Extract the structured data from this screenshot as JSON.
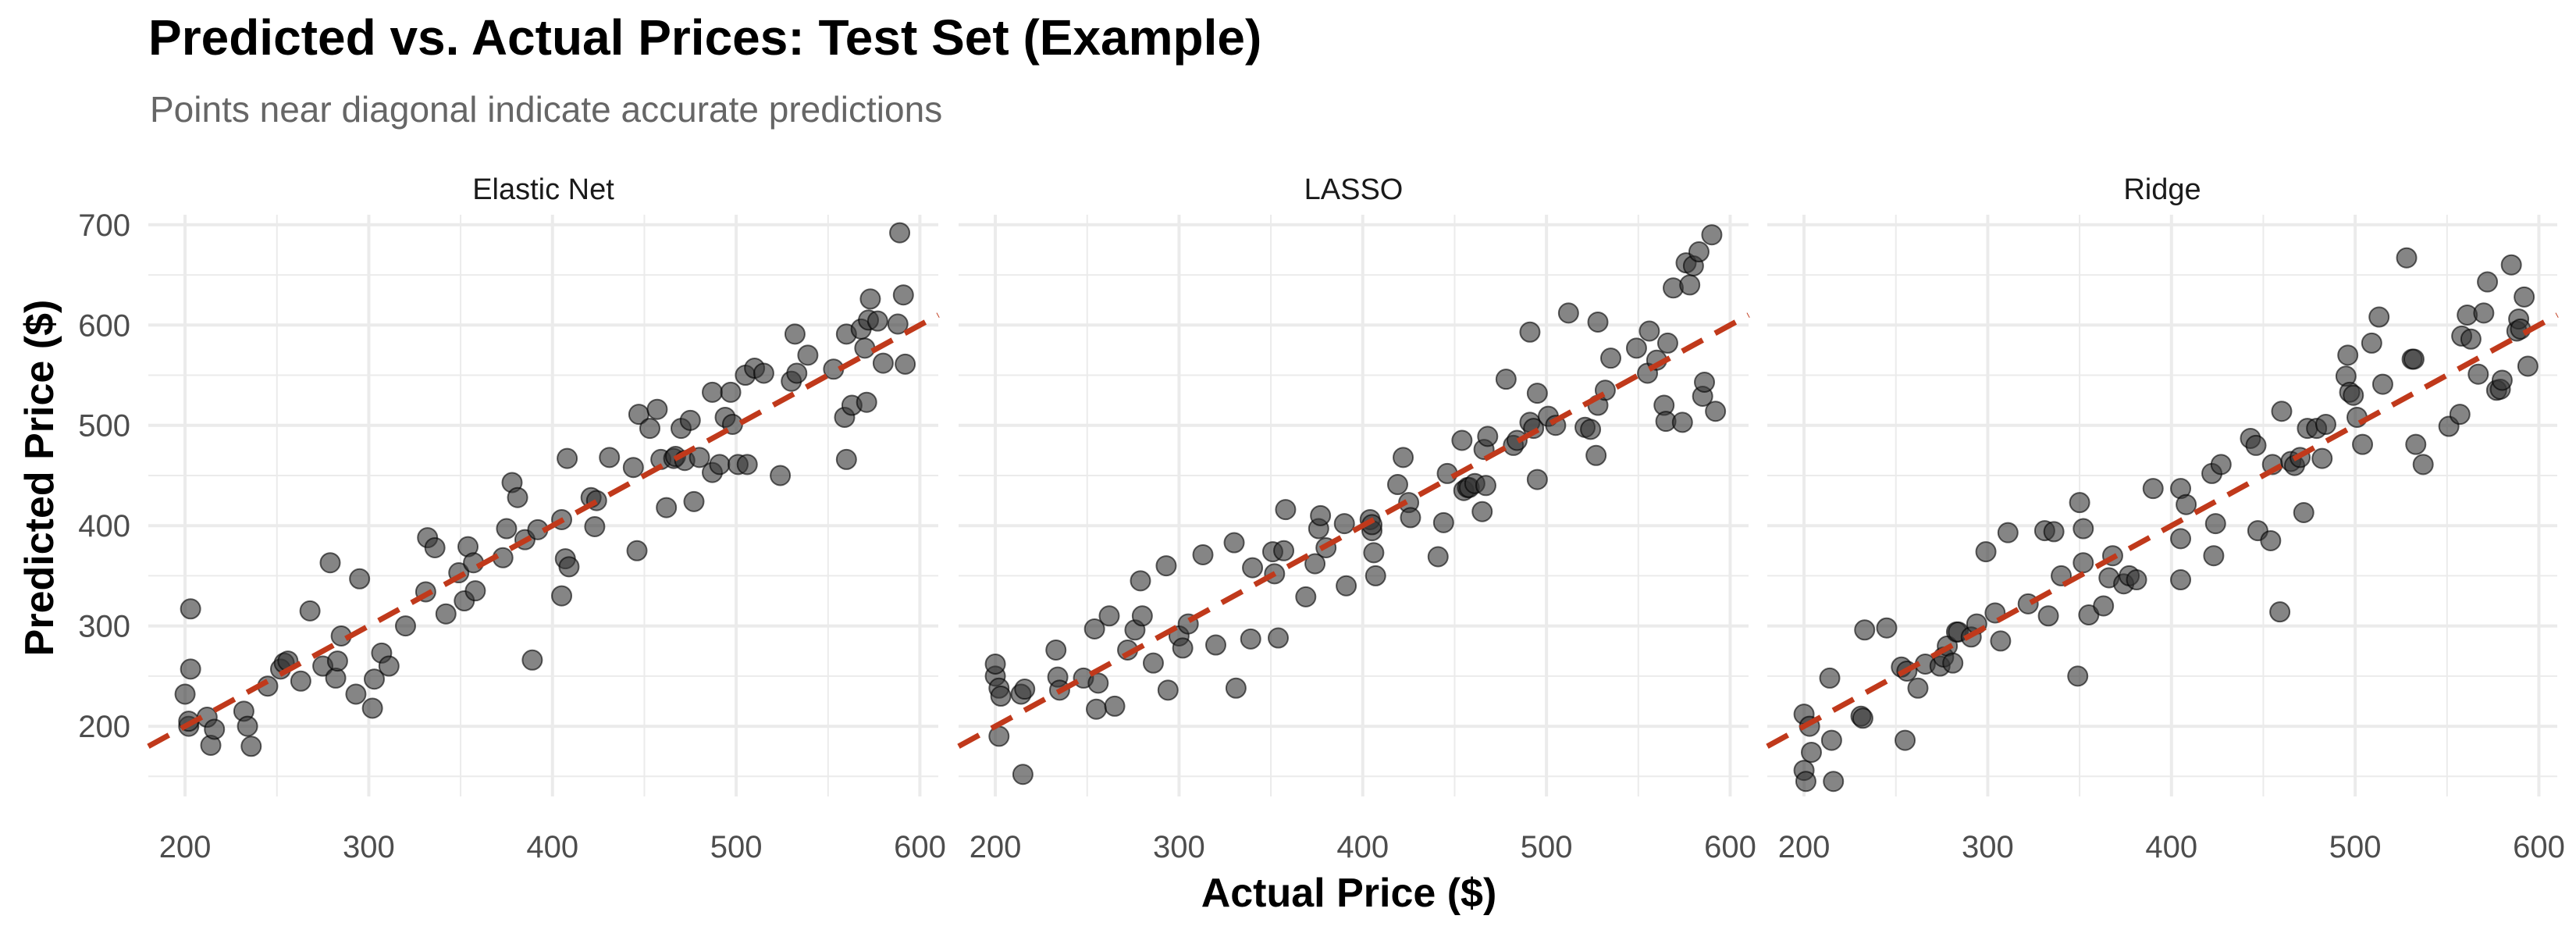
{
  "chart_data": {
    "type": "scatter",
    "title": "Predicted vs. Actual Prices: Test Set (Example)",
    "subtitle": "Points near diagonal indicate accurate predictions",
    "xlabel": "Actual Price ($)",
    "ylabel": "Predicted Price ($)",
    "xlim": [
      180,
      610
    ],
    "ylim": [
      130,
      710
    ],
    "x_ticks": [
      200,
      300,
      400,
      500,
      600
    ],
    "y_ticks": [
      200,
      300,
      400,
      500,
      600,
      700
    ],
    "grid": true,
    "reference_line": {
      "slope": 1,
      "intercept": 0,
      "color": "#C0391B",
      "style": "dashed"
    },
    "point_color": "#333333",
    "facets": [
      {
        "name": "Elastic Net",
        "points": [
          [
            200,
            232
          ],
          [
            202,
            200
          ],
          [
            202,
            205
          ],
          [
            203,
            257
          ],
          [
            203,
            317
          ],
          [
            212,
            209
          ],
          [
            214,
            181
          ],
          [
            216,
            197
          ],
          [
            232,
            215
          ],
          [
            234,
            200
          ],
          [
            236,
            180
          ],
          [
            245,
            240
          ],
          [
            252,
            257
          ],
          [
            254,
            263
          ],
          [
            256,
            265
          ],
          [
            263,
            245
          ],
          [
            268,
            315
          ],
          [
            275,
            260
          ],
          [
            279,
            363
          ],
          [
            282,
            248
          ],
          [
            283,
            265
          ],
          [
            285,
            290
          ],
          [
            293,
            232
          ],
          [
            295,
            347
          ],
          [
            302,
            218
          ],
          [
            303,
            247
          ],
          [
            307,
            273
          ],
          [
            311,
            260
          ],
          [
            320,
            300
          ],
          [
            331,
            334
          ],
          [
            332,
            388
          ],
          [
            336,
            378
          ],
          [
            342,
            312
          ],
          [
            349,
            353
          ],
          [
            352,
            325
          ],
          [
            354,
            379
          ],
          [
            357,
            363
          ],
          [
            358,
            335
          ],
          [
            373,
            368
          ],
          [
            375,
            397
          ],
          [
            378,
            443
          ],
          [
            381,
            428
          ],
          [
            385,
            386
          ],
          [
            389,
            266
          ],
          [
            392,
            396
          ],
          [
            405,
            330
          ],
          [
            405,
            406
          ],
          [
            407,
            367
          ],
          [
            408,
            467
          ],
          [
            409,
            359
          ],
          [
            421,
            428
          ],
          [
            423,
            399
          ],
          [
            424,
            425
          ],
          [
            431,
            468
          ],
          [
            444,
            458
          ],
          [
            446,
            375
          ],
          [
            447,
            511
          ],
          [
            453,
            497
          ],
          [
            457,
            516
          ],
          [
            459,
            466
          ],
          [
            462,
            418
          ],
          [
            466,
            467
          ],
          [
            467,
            469
          ],
          [
            470,
            497
          ],
          [
            472,
            465
          ],
          [
            475,
            505
          ],
          [
            477,
            424
          ],
          [
            480,
            468
          ],
          [
            487,
            533
          ],
          [
            487,
            453
          ],
          [
            491,
            461
          ],
          [
            494,
            508
          ],
          [
            497,
            533
          ],
          [
            498,
            501
          ],
          [
            501,
            461
          ],
          [
            505,
            550
          ],
          [
            506,
            461
          ],
          [
            510,
            557
          ],
          [
            515,
            552
          ],
          [
            524,
            450
          ],
          [
            530,
            544
          ],
          [
            532,
            591
          ],
          [
            533,
            552
          ],
          [
            539,
            570
          ],
          [
            553,
            556
          ],
          [
            559,
            508
          ],
          [
            560,
            466
          ],
          [
            560,
            591
          ],
          [
            563,
            520
          ],
          [
            568,
            596
          ],
          [
            570,
            577
          ],
          [
            571,
            523
          ],
          [
            572,
            605
          ],
          [
            573,
            626
          ],
          [
            577,
            604
          ],
          [
            580,
            562
          ],
          [
            588,
            601
          ],
          [
            589,
            692
          ],
          [
            591,
            630
          ],
          [
            592,
            561
          ]
        ]
      },
      {
        "name": "LASSO",
        "points": [
          [
            200,
            250
          ],
          [
            200,
            262
          ],
          [
            202,
            190
          ],
          [
            202,
            238
          ],
          [
            203,
            230
          ],
          [
            214,
            232
          ],
          [
            215,
            152
          ],
          [
            216,
            237
          ],
          [
            233,
            276
          ],
          [
            234,
            249
          ],
          [
            235,
            236
          ],
          [
            248,
            248
          ],
          [
            254,
            297
          ],
          [
            255,
            217
          ],
          [
            256,
            243
          ],
          [
            262,
            310
          ],
          [
            265,
            220
          ],
          [
            272,
            276
          ],
          [
            276,
            296
          ],
          [
            279,
            345
          ],
          [
            280,
            310
          ],
          [
            286,
            263
          ],
          [
            293,
            360
          ],
          [
            294,
            236
          ],
          [
            300,
            290
          ],
          [
            302,
            278
          ],
          [
            305,
            302
          ],
          [
            313,
            371
          ],
          [
            320,
            281
          ],
          [
            330,
            383
          ],
          [
            331,
            238
          ],
          [
            339,
            287
          ],
          [
            340,
            358
          ],
          [
            351,
            374
          ],
          [
            352,
            352
          ],
          [
            354,
            288
          ],
          [
            357,
            375
          ],
          [
            358,
            416
          ],
          [
            369,
            329
          ],
          [
            374,
            362
          ],
          [
            376,
            397
          ],
          [
            377,
            410
          ],
          [
            380,
            378
          ],
          [
            390,
            402
          ],
          [
            391,
            340
          ],
          [
            404,
            406
          ],
          [
            405,
            395
          ],
          [
            405,
            401
          ],
          [
            406,
            373
          ],
          [
            407,
            350
          ],
          [
            419,
            441
          ],
          [
            422,
            468
          ],
          [
            425,
            423
          ],
          [
            426,
            408
          ],
          [
            441,
            369
          ],
          [
            444,
            403
          ],
          [
            446,
            452
          ],
          [
            454,
            485
          ],
          [
            455,
            435
          ],
          [
            457,
            438
          ],
          [
            458,
            438
          ],
          [
            461,
            442
          ],
          [
            465,
            414
          ],
          [
            466,
            476
          ],
          [
            467,
            440
          ],
          [
            468,
            489
          ],
          [
            478,
            546
          ],
          [
            482,
            480
          ],
          [
            484,
            485
          ],
          [
            491,
            503
          ],
          [
            491,
            593
          ],
          [
            493,
            497
          ],
          [
            495,
            532
          ],
          [
            495,
            446
          ],
          [
            501,
            509
          ],
          [
            505,
            500
          ],
          [
            512,
            612
          ],
          [
            521,
            498
          ],
          [
            524,
            496
          ],
          [
            527,
            470
          ],
          [
            528,
            520
          ],
          [
            528,
            603
          ],
          [
            532,
            535
          ],
          [
            535,
            567
          ],
          [
            549,
            577
          ],
          [
            555,
            552
          ],
          [
            556,
            594
          ],
          [
            560,
            565
          ],
          [
            564,
            520
          ],
          [
            565,
            504
          ],
          [
            566,
            582
          ],
          [
            569,
            637
          ],
          [
            574,
            503
          ],
          [
            576,
            662
          ],
          [
            578,
            640
          ],
          [
            580,
            659
          ],
          [
            583,
            673
          ],
          [
            585,
            529
          ],
          [
            586,
            543
          ],
          [
            590,
            690
          ],
          [
            592,
            514
          ]
        ]
      },
      {
        "name": "Ridge",
        "points": [
          [
            200,
            212
          ],
          [
            200,
            156
          ],
          [
            201,
            145
          ],
          [
            203,
            200
          ],
          [
            204,
            174
          ],
          [
            214,
            248
          ],
          [
            215,
            186
          ],
          [
            216,
            145
          ],
          [
            231,
            210
          ],
          [
            232,
            208
          ],
          [
            233,
            296
          ],
          [
            245,
            298
          ],
          [
            253,
            259
          ],
          [
            255,
            186
          ],
          [
            256,
            255
          ],
          [
            262,
            238
          ],
          [
            266,
            262
          ],
          [
            274,
            260
          ],
          [
            276,
            269
          ],
          [
            278,
            280
          ],
          [
            281,
            263
          ],
          [
            283,
            294
          ],
          [
            284,
            294
          ],
          [
            291,
            289
          ],
          [
            294,
            302
          ],
          [
            299,
            374
          ],
          [
            304,
            313
          ],
          [
            307,
            285
          ],
          [
            311,
            393
          ],
          [
            322,
            322
          ],
          [
            331,
            395
          ],
          [
            333,
            310
          ],
          [
            336,
            394
          ],
          [
            340,
            350
          ],
          [
            349,
            250
          ],
          [
            350,
            423
          ],
          [
            352,
            363
          ],
          [
            352,
            397
          ],
          [
            355,
            311
          ],
          [
            363,
            320
          ],
          [
            366,
            348
          ],
          [
            368,
            370
          ],
          [
            374,
            342
          ],
          [
            377,
            350
          ],
          [
            381,
            346
          ],
          [
            390,
            437
          ],
          [
            405,
            346
          ],
          [
            405,
            387
          ],
          [
            405,
            437
          ],
          [
            408,
            421
          ],
          [
            422,
            452
          ],
          [
            423,
            370
          ],
          [
            424,
            402
          ],
          [
            427,
            461
          ],
          [
            443,
            487
          ],
          [
            446,
            480
          ],
          [
            447,
            395
          ],
          [
            454,
            385
          ],
          [
            455,
            461
          ],
          [
            459,
            314
          ],
          [
            460,
            514
          ],
          [
            465,
            464
          ],
          [
            467,
            460
          ],
          [
            470,
            468
          ],
          [
            472,
            413
          ],
          [
            474,
            497
          ],
          [
            479,
            497
          ],
          [
            482,
            467
          ],
          [
            484,
            501
          ],
          [
            495,
            549
          ],
          [
            496,
            570
          ],
          [
            497,
            533
          ],
          [
            499,
            530
          ],
          [
            501,
            508
          ],
          [
            504,
            481
          ],
          [
            509,
            582
          ],
          [
            513,
            608
          ],
          [
            515,
            541
          ],
          [
            528,
            667
          ],
          [
            531,
            566
          ],
          [
            532,
            566
          ],
          [
            533,
            481
          ],
          [
            537,
            461
          ],
          [
            551,
            499
          ],
          [
            557,
            511
          ],
          [
            558,
            589
          ],
          [
            561,
            610
          ],
          [
            563,
            586
          ],
          [
            567,
            551
          ],
          [
            570,
            612
          ],
          [
            572,
            643
          ],
          [
            577,
            535
          ],
          [
            579,
            536
          ],
          [
            580,
            545
          ],
          [
            585,
            660
          ],
          [
            588,
            594
          ],
          [
            589,
            606
          ],
          [
            590,
            596
          ],
          [
            592,
            628
          ],
          [
            594,
            559
          ]
        ]
      }
    ]
  }
}
